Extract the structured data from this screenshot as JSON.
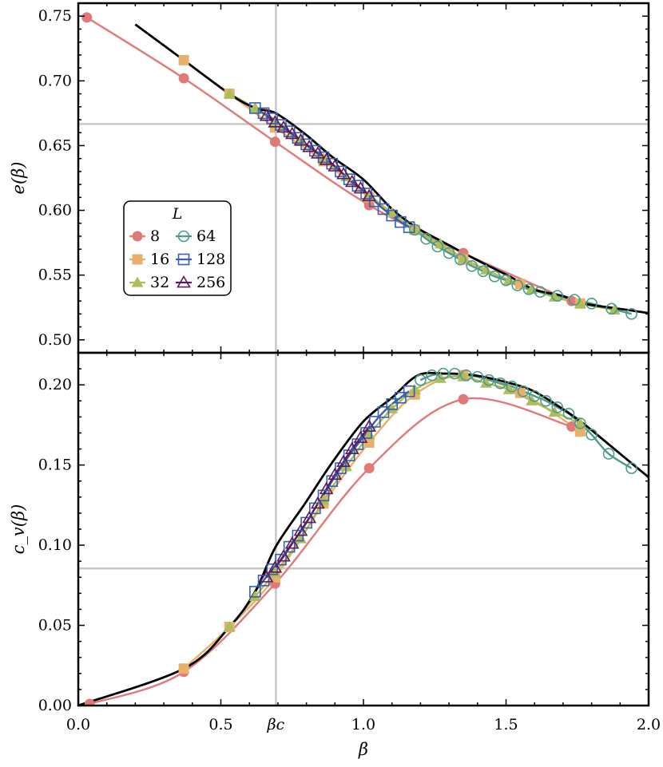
{
  "chart_data": [
    {
      "type": "line",
      "panel": "top",
      "ylabel": "e(β)",
      "xlim": [
        0.0,
        2.0
      ],
      "ylim": [
        0.49,
        0.76
      ],
      "x_ticks": [
        0.0,
        0.5,
        1.0,
        1.5,
        2.0
      ],
      "y_ticks": [
        0.5,
        0.55,
        0.6,
        0.65,
        0.7,
        0.75
      ],
      "y_tick_labels": [
        "0.50",
        "0.55",
        "0.60",
        "0.65",
        "0.70",
        "0.75"
      ],
      "ref_x": 0.6931,
      "ref_y": 0.6667,
      "legend": {
        "title": "L",
        "placement": "center-left"
      },
      "grid": false,
      "series": [
        {
          "name": "8",
          "marker": "circle-filled",
          "color": "#e07a7a",
          "x": [
            0.03,
            0.37,
            0.69,
            1.02,
            1.35,
            1.73
          ],
          "y": [
            0.749,
            0.702,
            0.653,
            0.604,
            0.567,
            0.53
          ]
        },
        {
          "name": "16",
          "marker": "square-filled",
          "color": "#e8b06a",
          "x": [
            0.37,
            0.53,
            0.69,
            0.86,
            1.02,
            1.18,
            1.35,
            1.55,
            1.76
          ],
          "y": [
            0.716,
            0.69,
            0.664,
            0.638,
            0.61,
            0.585,
            0.562,
            0.543,
            0.528
          ]
        },
        {
          "name": "32",
          "marker": "triangle-filled",
          "color": "#aabe5c",
          "x": [
            0.53,
            0.62,
            0.69,
            0.78,
            0.86,
            0.94,
            1.02,
            1.1,
            1.18,
            1.27,
            1.35,
            1.43,
            1.51,
            1.59,
            1.67,
            1.76,
            1.88
          ],
          "y": [
            0.69,
            0.679,
            0.667,
            0.653,
            0.64,
            0.626,
            0.612,
            0.598,
            0.585,
            0.574,
            0.563,
            0.554,
            0.546,
            0.539,
            0.533,
            0.528,
            0.523
          ]
        },
        {
          "name": "64",
          "marker": "circle-open",
          "color": "#4c9a8a",
          "x": [
            1.18,
            1.22,
            1.26,
            1.3,
            1.34,
            1.38,
            1.42,
            1.46,
            1.5,
            1.54,
            1.58,
            1.62,
            1.68,
            1.74,
            1.8,
            1.87,
            1.94
          ],
          "y": [
            0.585,
            0.578,
            0.572,
            0.567,
            0.562,
            0.557,
            0.553,
            0.549,
            0.546,
            0.542,
            0.539,
            0.537,
            0.534,
            0.531,
            0.528,
            0.524,
            0.52
          ]
        },
        {
          "name": "128",
          "marker": "square-open",
          "color": "#3a5fae",
          "x": [
            0.62,
            0.65,
            0.68,
            0.71,
            0.74,
            0.77,
            0.8,
            0.83,
            0.86,
            0.89,
            0.92,
            0.95,
            0.98,
            1.01,
            1.04,
            1.07,
            1.1,
            1.13,
            1.16
          ],
          "y": [
            0.679,
            0.675,
            0.671,
            0.666,
            0.661,
            0.656,
            0.651,
            0.646,
            0.641,
            0.636,
            0.63,
            0.624,
            0.619,
            0.613,
            0.607,
            0.601,
            0.596,
            0.591,
            0.587
          ]
        },
        {
          "name": "256",
          "marker": "triangle-open",
          "color": "#5c1a5c",
          "x": [
            0.66,
            0.69,
            0.72,
            0.75,
            0.78,
            0.81,
            0.84,
            0.87,
            0.9,
            0.93,
            0.96,
            0.99,
            1.02
          ],
          "y": [
            0.673,
            0.668,
            0.664,
            0.659,
            0.654,
            0.649,
            0.644,
            0.639,
            0.634,
            0.628,
            0.622,
            0.617,
            0.611
          ]
        }
      ]
    },
    {
      "type": "line",
      "panel": "bottom",
      "xlabel": "β",
      "ylabel": "c_v(β)",
      "xlim": [
        0.0,
        2.0
      ],
      "ylim": [
        0.0,
        0.22
      ],
      "x_ticks": [
        0.0,
        0.5,
        1.0,
        1.5,
        2.0
      ],
      "x_tick_labels": [
        "0.0",
        "0.5",
        "1.0",
        "1.5",
        "2.0"
      ],
      "beta_c_label": "βc",
      "y_ticks": [
        0.0,
        0.05,
        0.1,
        0.15,
        0.2
      ],
      "y_tick_labels": [
        "0.00",
        "0.05",
        "0.10",
        "0.15",
        "0.20"
      ],
      "ref_x": 0.6931,
      "ref_y": 0.0855,
      "grid": false,
      "series": [
        {
          "name": "8",
          "marker": "circle-filled",
          "color": "#e07a7a",
          "x": [
            0.04,
            0.37,
            0.69,
            1.02,
            1.35,
            1.73
          ],
          "y": [
            0.001,
            0.021,
            0.076,
            0.148,
            0.191,
            0.174
          ]
        },
        {
          "name": "16",
          "marker": "square-filled",
          "color": "#e8b06a",
          "x": [
            0.37,
            0.53,
            0.69,
            0.86,
            1.02,
            1.18,
            1.35,
            1.55,
            1.76
          ],
          "y": [
            0.023,
            0.049,
            0.08,
            0.126,
            0.164,
            0.194,
            0.206,
            0.195,
            0.171
          ]
        },
        {
          "name": "32",
          "marker": "triangle-filled",
          "color": "#aabe5c",
          "x": [
            0.53,
            0.62,
            0.69,
            0.78,
            0.86,
            0.94,
            1.02,
            1.1,
            1.18,
            1.27,
            1.35,
            1.43,
            1.51,
            1.59,
            1.67,
            1.76
          ],
          "y": [
            0.049,
            0.068,
            0.083,
            0.104,
            0.128,
            0.149,
            0.169,
            0.185,
            0.197,
            0.204,
            0.205,
            0.201,
            0.197,
            0.19,
            0.183,
            0.176
          ]
        },
        {
          "name": "64",
          "marker": "circle-open",
          "color": "#4c9a8a",
          "x": [
            1.2,
            1.24,
            1.28,
            1.32,
            1.36,
            1.4,
            1.44,
            1.48,
            1.52,
            1.56,
            1.6,
            1.64,
            1.68,
            1.72,
            1.76,
            1.8,
            1.86,
            1.94
          ],
          "y": [
            0.203,
            0.206,
            0.207,
            0.207,
            0.206,
            0.205,
            0.203,
            0.201,
            0.199,
            0.196,
            0.193,
            0.19,
            0.186,
            0.182,
            0.176,
            0.169,
            0.157,
            0.148
          ]
        },
        {
          "name": "128",
          "marker": "square-open",
          "color": "#3a5fae",
          "x": [
            0.62,
            0.65,
            0.68,
            0.71,
            0.74,
            0.77,
            0.8,
            0.83,
            0.86,
            0.89,
            0.92,
            0.95,
            0.98,
            1.01,
            1.04,
            1.07,
            1.1,
            1.13,
            1.16
          ],
          "y": [
            0.071,
            0.078,
            0.085,
            0.091,
            0.099,
            0.106,
            0.114,
            0.123,
            0.131,
            0.14,
            0.148,
            0.156,
            0.163,
            0.17,
            0.177,
            0.183,
            0.188,
            0.192,
            0.196
          ]
        },
        {
          "name": "256",
          "marker": "triangle-open",
          "color": "#5c1a5c",
          "x": [
            0.66,
            0.69,
            0.72,
            0.75,
            0.78,
            0.81,
            0.84,
            0.87,
            0.9,
            0.93,
            0.96,
            0.99,
            1.02
          ],
          "y": [
            0.08,
            0.086,
            0.093,
            0.101,
            0.109,
            0.117,
            0.126,
            0.135,
            0.144,
            0.152,
            0.16,
            0.167,
            0.174
          ]
        }
      ]
    }
  ]
}
